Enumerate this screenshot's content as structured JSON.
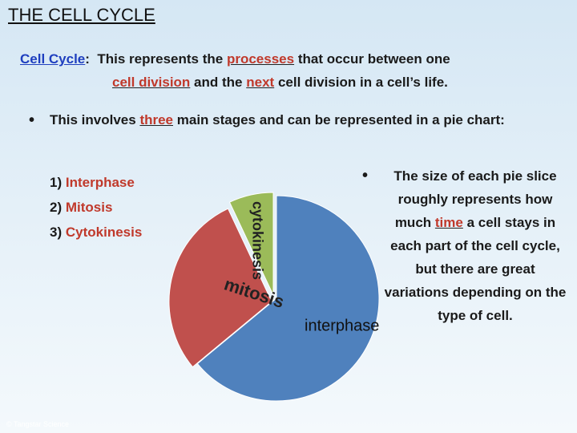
{
  "title": "THE CELL CYCLE",
  "definition": {
    "term": "Cell Cycle",
    "colon": ":",
    "parts": [
      "This represents the",
      "processes",
      "that occur between one",
      "cell division",
      "and the",
      "next",
      "cell division in a cell’s life."
    ]
  },
  "bullet_1": {
    "parts": [
      "This involves",
      "three",
      "main stages and can be represented in a pie chart:"
    ]
  },
  "stages": [
    {
      "number": "1)",
      "label": "Interphase"
    },
    {
      "number": "2)",
      "label": "Mitosis"
    },
    {
      "number": "3)",
      "label": "Cytokinesis"
    }
  ],
  "bullet_2": {
    "parts": [
      "The size of each pie slice roughly represents how much",
      "time",
      "a cell stays in each part of the cell cycle, but there are great variations depending on the type of cell."
    ]
  },
  "chart_data": {
    "type": "pie",
    "categories": [
      "interphase",
      "mitosis",
      "cytokinesis"
    ],
    "values": [
      64,
      29,
      7
    ],
    "colors": [
      "#4f81bd",
      "#c0504d",
      "#9bbb59"
    ]
  },
  "footer": "© Tangstar Science"
}
